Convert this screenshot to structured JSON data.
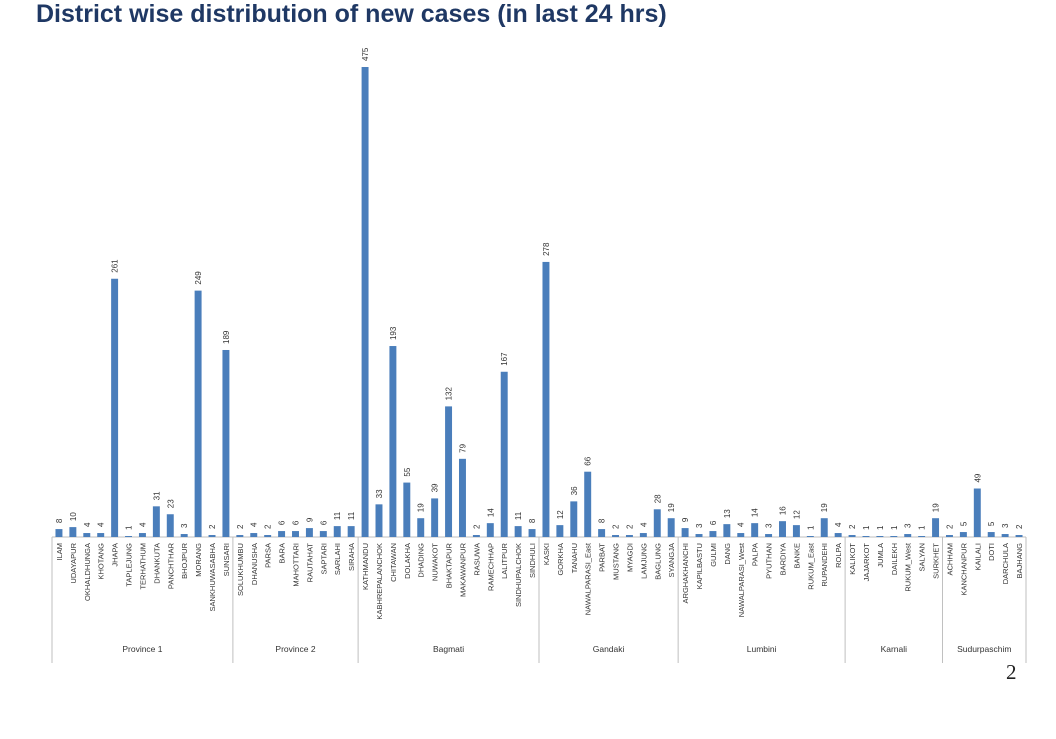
{
  "title": "District wise distribution of new cases (in last 24 hrs)",
  "page_number": "2",
  "colors": {
    "bar": "#4a7ebb",
    "axis": "#bfbfbf",
    "title": "#1f3864",
    "text": "#333333"
  },
  "chart_data": {
    "type": "bar",
    "title": "District wise distribution of new cases (in last 24 hrs)",
    "xlabel": "",
    "ylabel": "",
    "ylim": [
      0,
      475
    ],
    "grid": false,
    "legend": "none",
    "categories": [
      "ILAM",
      "UDAYAPUR",
      "OKHALDHUNGA",
      "KHOTANG",
      "JHAPA",
      "TAPLEJUNG",
      "TERHATHUM",
      "DHANKUTA",
      "PANCHTHAR",
      "BHOJPUR",
      "MORANG",
      "SANKHUWASABHA",
      "SUNSARI",
      "SOLUKHUMBU",
      "DHANUSHA",
      "PARSA",
      "BARA",
      "MAHOTTARI",
      "RAUTAHAT",
      "SAPTARI",
      "SARLAHI",
      "SIRAHA",
      "KATHMANDU",
      "KABHREPALANCHOK",
      "CHITAWAN",
      "DOLAKHA",
      "DHADING",
      "NUWAKOT",
      "BHAKTAPUR",
      "MAKAWANPUR",
      "RASUWA",
      "RAMECHHAP",
      "LALITPUR",
      "SINDHUPALCHOK",
      "SINDHULI",
      "KASKI",
      "GORKHA",
      "TANAHU",
      "NAWALPARASI_East",
      "PARBAT",
      "MUSTANG",
      "MYAGDI",
      "LAMJUNG",
      "BAGLUNG",
      "SYANGJA",
      "ARGHAKHANCHI",
      "KAPILBASTU",
      "GULMI",
      "DANG",
      "NAWALPARASI_West",
      "PALPA",
      "PYUTHAN",
      "BARDIYA",
      "BANKE",
      "RUKUM_East",
      "RUPANDEHI",
      "ROLPA",
      "KALIKOT",
      "JAJARKOT",
      "JUMLA",
      "DAILEKH",
      "RUKUM_West",
      "SALYAN",
      "SURKHET",
      "ACHHAM",
      "KANCHANPUR",
      "KAILALI",
      "DOTI",
      "DARCHULA",
      "BAJHANG"
    ],
    "values": [
      8,
      10,
      4,
      4,
      261,
      1,
      4,
      31,
      23,
      3,
      249,
      2,
      189,
      2,
      4,
      2,
      6,
      6,
      9,
      6,
      11,
      11,
      475,
      33,
      193,
      55,
      19,
      39,
      132,
      79,
      2,
      14,
      167,
      11,
      8,
      278,
      12,
      36,
      66,
      8,
      2,
      2,
      4,
      28,
      19,
      9,
      3,
      6,
      13,
      4,
      14,
      3,
      16,
      12,
      1,
      19,
      4,
      2,
      1,
      1,
      1,
      3,
      1,
      19,
      2,
      5,
      49,
      5,
      3,
      2
    ],
    "groups": [
      {
        "name": "Province 1",
        "count": 13
      },
      {
        "name": "Province 2",
        "count": 9
      },
      {
        "name": "Bagmati",
        "count": 13
      },
      {
        "name": "Gandaki",
        "count": 10
      },
      {
        "name": "Lumbini",
        "count": 12
      },
      {
        "name": "Karnali",
        "count": 7
      },
      {
        "name": "Sudurpaschim",
        "count": 6
      }
    ]
  }
}
